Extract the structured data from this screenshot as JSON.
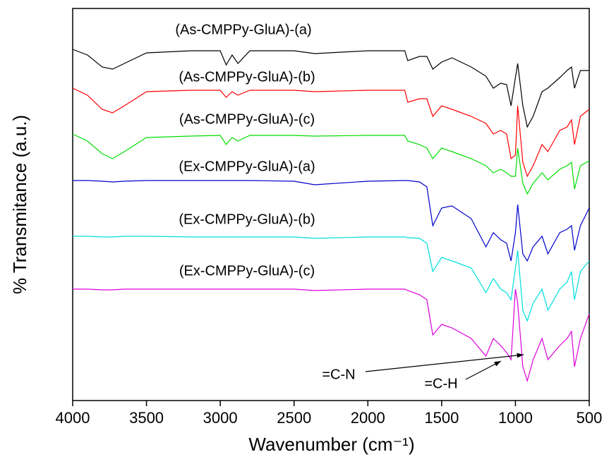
{
  "chart_data": {
    "type": "line",
    "x_label": "Wavenumber (cm⁻¹)",
    "y_label": "% Transmitance (a.u.)",
    "xlim": [
      4000,
      500
    ],
    "xticks": [
      4000,
      3500,
      3000,
      2500,
      2000,
      1500,
      1000,
      500
    ],
    "ylim": [
      0,
      556
    ],
    "x": [
      4000,
      3900,
      3800,
      3730,
      3650,
      3500,
      3200,
      3000,
      2960,
      2920,
      2880,
      2800,
      2500,
      2360,
      2000,
      1750,
      1730,
      1650,
      1600,
      1560,
      1500,
      1430,
      1300,
      1200,
      1150,
      1100,
      1060,
      1030,
      1000,
      985,
      950,
      920,
      880,
      820,
      780,
      700,
      650,
      620,
      600,
      560,
      500
    ],
    "series": [
      {
        "name": "(As-CMPPy-GluA)-(a)",
        "color": "#000000",
        "values": [
          498,
          490,
          473,
          470,
          478,
          493,
          496,
          496,
          476,
          490,
          478,
          496,
          496,
          492,
          496,
          496,
          482,
          488,
          488,
          470,
          480,
          486,
          473,
          460,
          443,
          450,
          448,
          418,
          458,
          478,
          418,
          388,
          403,
          438,
          443,
          458,
          468,
          473,
          443,
          468,
          468
        ]
      },
      {
        "name": "(As-CMPPy-GluA)-(b)",
        "color": "#ff0000",
        "values": [
          443,
          433,
          413,
          408,
          418,
          438,
          440,
          440,
          430,
          438,
          433,
          440,
          440,
          438,
          440,
          440,
          423,
          428,
          428,
          403,
          418,
          413,
          403,
          393,
          378,
          383,
          378,
          343,
          348,
          418,
          338,
          318,
          333,
          363,
          353,
          383,
          388,
          398,
          363,
          403,
          413
        ]
      },
      {
        "name": "(As-CMPPy-GluA)-(c)",
        "color": "#00dd00",
        "values": [
          378,
          368,
          350,
          343,
          353,
          373,
          375,
          376,
          363,
          373,
          368,
          376,
          376,
          375,
          376,
          376,
          368,
          363,
          358,
          343,
          358,
          353,
          343,
          333,
          323,
          328,
          323,
          318,
          318,
          358,
          308,
          293,
          308,
          323,
          313,
          328,
          333,
          338,
          300,
          333,
          340
        ]
      },
      {
        "name": "(Ex-CMPPy-GluA)-(a)",
        "color": "#0000cc",
        "values": [
          312,
          312,
          311,
          310,
          311,
          312,
          312,
          312,
          312,
          312,
          312,
          312,
          311,
          306,
          311,
          312,
          312,
          310,
          303,
          248,
          273,
          276,
          258,
          218,
          238,
          228,
          223,
          198,
          238,
          278,
          208,
          198,
          218,
          233,
          208,
          238,
          243,
          248,
          213,
          248,
          273
        ]
      },
      {
        "name": "(Ex-CMPPy-GluA)-(b)",
        "color": "#00dddd",
        "values": [
          233,
          233,
          232,
          232,
          233,
          233,
          232,
          232,
          232,
          232,
          232,
          232,
          232,
          230,
          232,
          232,
          231,
          230,
          223,
          183,
          203,
          198,
          188,
          153,
          173,
          158,
          153,
          143,
          188,
          213,
          128,
          113,
          138,
          158,
          128,
          158,
          168,
          183,
          143,
          183,
          198
        ]
      },
      {
        "name": "(Ex-CMPPy-GluA)-(c)",
        "color": "#dd00dd",
        "values": [
          158,
          158,
          157,
          157,
          158,
          158,
          158,
          158,
          158,
          158,
          158,
          158,
          158,
          156,
          158,
          158,
          156,
          150,
          143,
          93,
          108,
          103,
          88,
          63,
          88,
          78,
          68,
          58,
          158,
          138,
          48,
          28,
          58,
          88,
          58,
          78,
          88,
          98,
          48,
          88,
          123
        ]
      }
    ],
    "annotations": [
      "=C-N",
      "=C-H"
    ]
  }
}
